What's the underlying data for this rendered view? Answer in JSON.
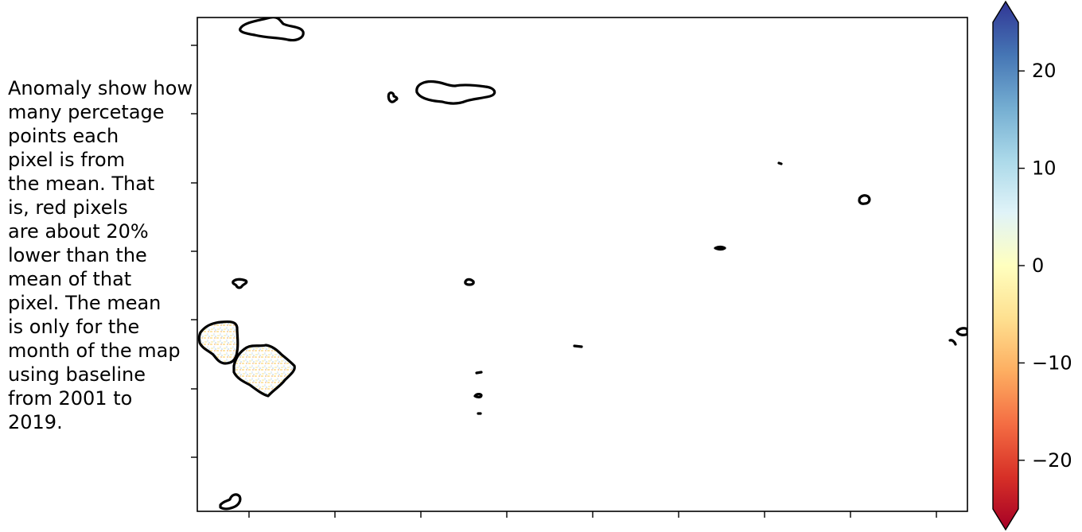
{
  "note_text": "Anomaly show how\nmany percetage\npoints each\npixel is from\nthe mean. That\nis, red pixels\nare about 20%\nlower than the\nmean of that\npixel. The mean\nis only for the\nmonth of the map\nusing baseline\nfrom 2001 to\n2019.",
  "colorbar": {
    "min": -25,
    "max": 25,
    "extend": "both",
    "colormap": "RdYlBu",
    "ticks": [
      {
        "value": 20,
        "label": "20"
      },
      {
        "value": 10,
        "label": "10"
      },
      {
        "value": 0,
        "label": "0"
      },
      {
        "value": -10,
        "label": "−10"
      },
      {
        "value": -20,
        "label": "−20"
      }
    ],
    "stops": [
      "#a50026",
      "#d73027",
      "#f46d43",
      "#fdae61",
      "#fee090",
      "#ffffbf",
      "#e0f3f8",
      "#abd9e9",
      "#74add1",
      "#4575b4",
      "#313695"
    ]
  },
  "map": {
    "coastline_color": "#000000",
    "background": "#ffffff",
    "x_tick_count": 9,
    "y_tick_count": 7,
    "tick_labels_shown": false
  }
}
